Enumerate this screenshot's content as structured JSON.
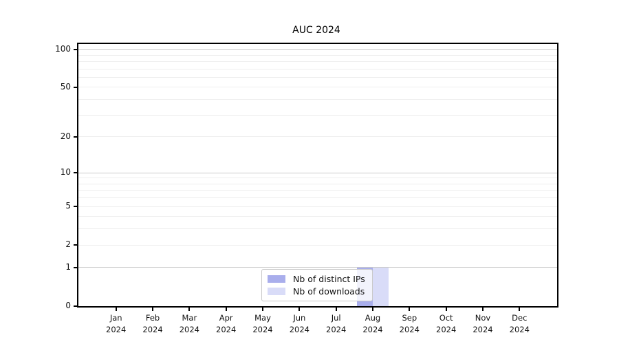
{
  "chart_data": {
    "type": "bar",
    "title": "AUC 2024",
    "x": {
      "months": [
        "Jan",
        "Feb",
        "Mar",
        "Apr",
        "May",
        "Jun",
        "Jul",
        "Aug",
        "Sep",
        "Oct",
        "Nov",
        "Dec"
      ],
      "year": "2024"
    },
    "series": [
      {
        "name": "Nb of distinct IPs",
        "color": "#a9aeec",
        "values": [
          0,
          0,
          0,
          0,
          0,
          0,
          0,
          1,
          0,
          0,
          0,
          0
        ]
      },
      {
        "name": "Nb of downloads",
        "color": "#d9dcf8",
        "values": [
          0,
          0,
          0,
          0,
          0,
          0,
          0,
          1,
          0,
          0,
          0,
          0
        ]
      }
    ],
    "y_axis": {
      "scale": "log1p",
      "ticks": [
        0,
        1,
        2,
        5,
        10,
        20,
        50,
        100
      ],
      "major_gridlines": [
        1,
        10,
        100
      ],
      "minor_gridlines": [
        2,
        3,
        4,
        5,
        6,
        7,
        8,
        9,
        20,
        30,
        40,
        50,
        60,
        70,
        80,
        90
      ],
      "ylim": [
        0,
        110
      ]
    },
    "legend_position": "bottom-center-inside",
    "grid": "horizontal only",
    "colors": {
      "major_grid": "#c9c9c9",
      "minor_grid": "#eeeeee",
      "axis": "#000000",
      "text": "#111111",
      "background": "#ffffff"
    }
  }
}
